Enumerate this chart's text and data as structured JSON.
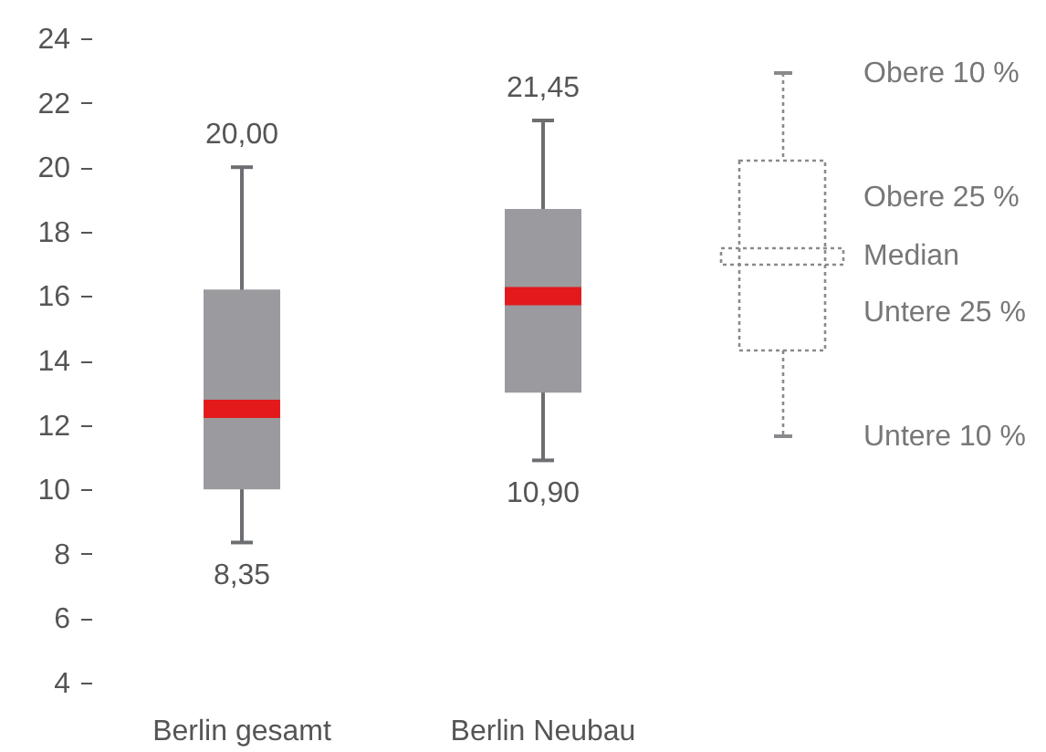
{
  "chart_data": {
    "type": "box",
    "categories": [
      "Berlin gesamt",
      "Berlin Neubau"
    ],
    "series": [
      {
        "color": "#9b9a9f",
        "boxes": [
          {
            "low": 8.35,
            "q1": 10.0,
            "median": 12.5,
            "q3": 16.2,
            "high": 20.0
          },
          {
            "low": 10.9,
            "q1": 13.0,
            "median": 16.0,
            "q3": 18.7,
            "high": 21.45
          }
        ]
      }
    ],
    "ylim": [
      4,
      24
    ],
    "yticks": [
      4,
      6,
      8,
      10,
      12,
      14,
      16,
      18,
      20,
      22,
      24
    ],
    "grid": false,
    "annotations": [
      {
        "text": "20,00",
        "x": "Berlin gesamt",
        "y": 20.0
      },
      {
        "text": "8,35",
        "x": "Berlin gesamt",
        "y": 8.35
      },
      {
        "text": "21,45",
        "x": "Berlin Neubau",
        "y": 21.45
      },
      {
        "text": "10,90",
        "x": "Berlin Neubau",
        "y": 10.9
      },
      "Obere 10 %",
      "Obere 25 %",
      "Median",
      "Untere 25 %",
      "Untere 10 %"
    ]
  }
}
